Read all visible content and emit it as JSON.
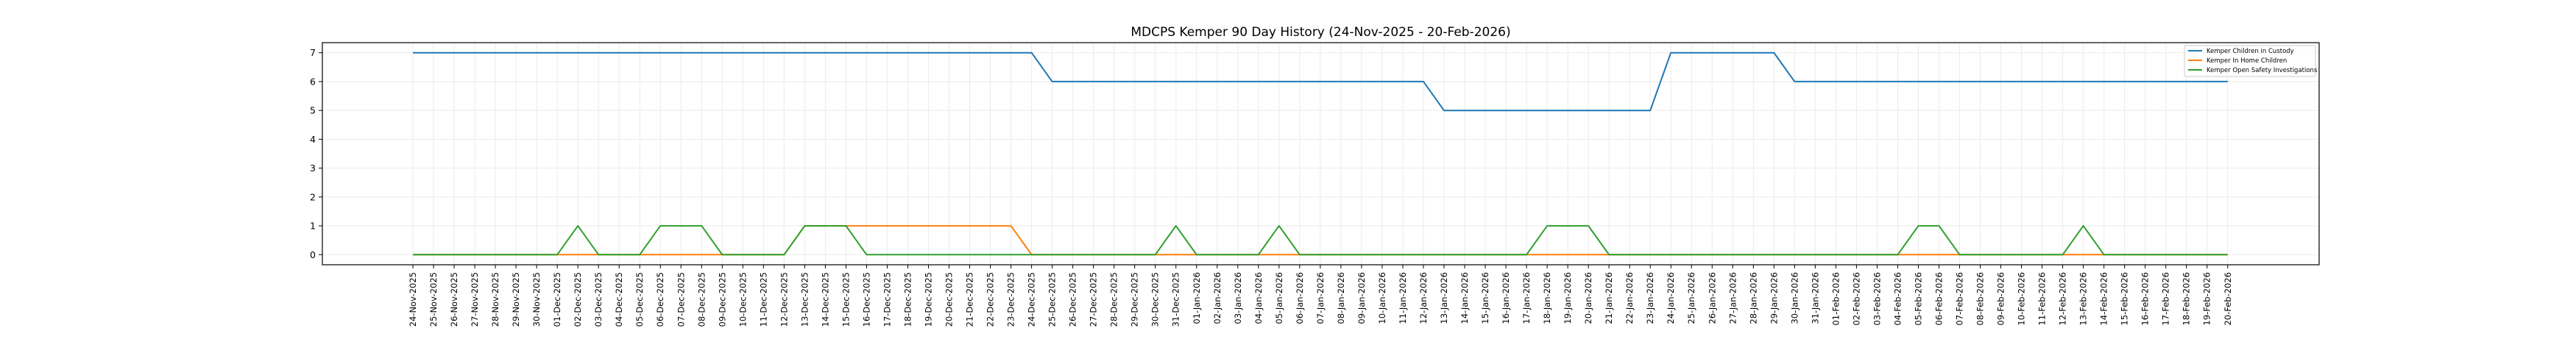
{
  "chart_data": {
    "type": "line",
    "title": "MDCPS Kemper 90 Day History (24-Nov-2025 - 20-Feb-2026)",
    "xlabel": "",
    "ylabel": "",
    "ylim": [
      -0.35,
      7.35
    ],
    "yticks": [
      0,
      1,
      2,
      3,
      4,
      5,
      6,
      7
    ],
    "grid": true,
    "legend_position": "top-right",
    "categories": [
      "24-Nov-2025",
      "25-Nov-2025",
      "26-Nov-2025",
      "27-Nov-2025",
      "28-Nov-2025",
      "29-Nov-2025",
      "30-Nov-2025",
      "01-Dec-2025",
      "02-Dec-2025",
      "03-Dec-2025",
      "04-Dec-2025",
      "05-Dec-2025",
      "06-Dec-2025",
      "07-Dec-2025",
      "08-Dec-2025",
      "09-Dec-2025",
      "10-Dec-2025",
      "11-Dec-2025",
      "12-Dec-2025",
      "13-Dec-2025",
      "14-Dec-2025",
      "15-Dec-2025",
      "16-Dec-2025",
      "17-Dec-2025",
      "18-Dec-2025",
      "19-Dec-2025",
      "20-Dec-2025",
      "21-Dec-2025",
      "22-Dec-2025",
      "23-Dec-2025",
      "24-Dec-2025",
      "25-Dec-2025",
      "26-Dec-2025",
      "27-Dec-2025",
      "28-Dec-2025",
      "29-Dec-2025",
      "30-Dec-2025",
      "31-Dec-2025",
      "01-Jan-2026",
      "02-Jan-2026",
      "03-Jan-2026",
      "04-Jan-2026",
      "05-Jan-2026",
      "06-Jan-2026",
      "07-Jan-2026",
      "08-Jan-2026",
      "09-Jan-2026",
      "10-Jan-2026",
      "11-Jan-2026",
      "12-Jan-2026",
      "13-Jan-2026",
      "14-Jan-2026",
      "15-Jan-2026",
      "16-Jan-2026",
      "17-Jan-2026",
      "18-Jan-2026",
      "19-Jan-2026",
      "20-Jan-2026",
      "21-Jan-2026",
      "22-Jan-2026",
      "23-Jan-2026",
      "24-Jan-2026",
      "25-Jan-2026",
      "26-Jan-2026",
      "27-Jan-2026",
      "28-Jan-2026",
      "29-Jan-2026",
      "30-Jan-2026",
      "31-Jan-2026",
      "01-Feb-2026",
      "02-Feb-2026",
      "03-Feb-2026",
      "04-Feb-2026",
      "05-Feb-2026",
      "06-Feb-2026",
      "07-Feb-2026",
      "08-Feb-2026",
      "09-Feb-2026",
      "10-Feb-2026",
      "11-Feb-2026",
      "12-Feb-2026",
      "13-Feb-2026",
      "14-Feb-2026",
      "15-Feb-2026",
      "16-Feb-2026",
      "17-Feb-2026",
      "18-Feb-2026",
      "19-Feb-2026",
      "20-Feb-2026"
    ],
    "series": [
      {
        "name": "Kemper Children in Custody",
        "color": "#1f77b4",
        "values": [
          7,
          7,
          7,
          7,
          7,
          7,
          7,
          7,
          7,
          7,
          7,
          7,
          7,
          7,
          7,
          7,
          7,
          7,
          7,
          7,
          7,
          7,
          7,
          7,
          7,
          7,
          7,
          7,
          7,
          7,
          7,
          6,
          6,
          6,
          6,
          6,
          6,
          6,
          6,
          6,
          6,
          6,
          6,
          6,
          6,
          6,
          6,
          6,
          6,
          6,
          5,
          5,
          5,
          5,
          5,
          5,
          5,
          5,
          5,
          5,
          5,
          7,
          7,
          7,
          7,
          7,
          7,
          6,
          6,
          6,
          6,
          6,
          6,
          6,
          6,
          6,
          6,
          6,
          6,
          6,
          6,
          6,
          6,
          6,
          6,
          6,
          6,
          6,
          6
        ]
      },
      {
        "name": "Kemper In Home Children",
        "color": "#ff7f0e",
        "values": [
          0,
          0,
          0,
          0,
          0,
          0,
          0,
          0,
          0,
          0,
          0,
          0,
          0,
          0,
          0,
          0,
          0,
          0,
          0,
          1,
          1,
          1,
          1,
          1,
          1,
          1,
          1,
          1,
          1,
          1,
          0,
          0,
          0,
          0,
          0,
          0,
          0,
          0,
          0,
          0,
          0,
          0,
          0,
          0,
          0,
          0,
          0,
          0,
          0,
          0,
          0,
          0,
          0,
          0,
          0,
          0,
          0,
          0,
          0,
          0,
          0,
          0,
          0,
          0,
          0,
          0,
          0,
          0,
          0,
          0,
          0,
          0,
          0,
          0,
          0,
          0,
          0,
          0,
          0,
          0,
          0,
          0,
          0,
          0,
          0,
          0,
          0,
          0,
          0
        ]
      },
      {
        "name": "Kemper Open Safety Investigations",
        "color": "#2ca02c",
        "values": [
          0,
          0,
          0,
          0,
          0,
          0,
          0,
          0,
          1,
          0,
          0,
          0,
          1,
          1,
          1,
          0,
          0,
          0,
          0,
          1,
          1,
          1,
          0,
          0,
          0,
          0,
          0,
          0,
          0,
          0,
          0,
          0,
          0,
          0,
          0,
          0,
          0,
          1,
          0,
          0,
          0,
          0,
          1,
          0,
          0,
          0,
          0,
          0,
          0,
          0,
          0,
          0,
          0,
          0,
          0,
          1,
          1,
          1,
          0,
          0,
          0,
          0,
          0,
          0,
          0,
          0,
          0,
          0,
          0,
          0,
          0,
          0,
          0,
          1,
          1,
          0,
          0,
          0,
          0,
          0,
          0,
          1,
          0,
          0,
          0,
          0,
          0,
          0,
          0
        ]
      }
    ]
  }
}
